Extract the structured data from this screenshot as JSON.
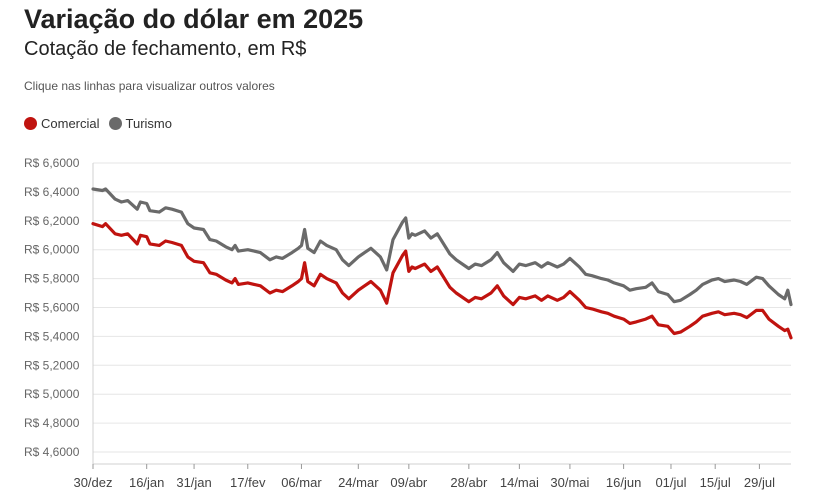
{
  "header": {
    "title": "Variação do dólar em 2025",
    "subtitle": "Cotação de fechamento, em R$",
    "hint": "Clique nas linhas para visualizar outros valores"
  },
  "legend": [
    {
      "label": "Comercial",
      "color": "#c0130f"
    },
    {
      "label": "Turismo",
      "color": "#6a6a6a"
    }
  ],
  "chart_data": {
    "type": "line",
    "title": "Variação do dólar em 2025",
    "subtitle": "Cotação de fechamento, em R$",
    "ylim": [
      4.6,
      6.6
    ],
    "yticks": [
      {
        "value": 6.6,
        "label": "R$ 6,6000"
      },
      {
        "value": 6.4,
        "label": "R$ 6,4000"
      },
      {
        "value": 6.2,
        "label": "R$ 6,2000"
      },
      {
        "value": 6.0,
        "label": "R$ 6,0000"
      },
      {
        "value": 5.8,
        "label": "R$ 5,8000"
      },
      {
        "value": 5.6,
        "label": "R$ 5,6000"
      },
      {
        "value": 5.4,
        "label": "R$ 5,4000"
      },
      {
        "value": 5.2,
        "label": "R$ 5,2000"
      },
      {
        "value": 5.0,
        "label": "R$ 5,0000"
      },
      {
        "value": 4.8,
        "label": "R$ 4,8000"
      },
      {
        "value": 4.6,
        "label": "R$ 4,6000"
      }
    ],
    "xlim": [
      "2024-12-30",
      "2025-08-08"
    ],
    "xticks": [
      {
        "date": "2024-12-30",
        "label": "30/dez"
      },
      {
        "date": "2025-01-16",
        "label": "16/jan"
      },
      {
        "date": "2025-01-31",
        "label": "31/jan"
      },
      {
        "date": "2025-02-17",
        "label": "17/fev"
      },
      {
        "date": "2025-03-06",
        "label": "06/mar"
      },
      {
        "date": "2025-03-24",
        "label": "24/mar"
      },
      {
        "date": "2025-04-09",
        "label": "09/abr"
      },
      {
        "date": "2025-04-28",
        "label": "28/abr"
      },
      {
        "date": "2025-05-14",
        "label": "14/mai"
      },
      {
        "date": "2025-05-30",
        "label": "30/mai"
      },
      {
        "date": "2025-06-16",
        "label": "16/jun"
      },
      {
        "date": "2025-07-01",
        "label": "01/jul"
      },
      {
        "date": "2025-07-15",
        "label": "15/jul"
      },
      {
        "date": "2025-07-29",
        "label": "29/jul"
      }
    ],
    "grid": true,
    "legend_position": "top-left",
    "series": [
      {
        "name": "Comercial",
        "color": "#c0130f",
        "points": [
          [
            "2024-12-30",
            6.18
          ],
          [
            "2025-01-02",
            6.16
          ],
          [
            "2025-01-03",
            6.18
          ],
          [
            "2025-01-06",
            6.11
          ],
          [
            "2025-01-08",
            6.1
          ],
          [
            "2025-01-10",
            6.11
          ],
          [
            "2025-01-13",
            6.04
          ],
          [
            "2025-01-14",
            6.1
          ],
          [
            "2025-01-16",
            6.09
          ],
          [
            "2025-01-17",
            6.04
          ],
          [
            "2025-01-20",
            6.03
          ],
          [
            "2025-01-22",
            6.06
          ],
          [
            "2025-01-24",
            6.05
          ],
          [
            "2025-01-27",
            6.03
          ],
          [
            "2025-01-29",
            5.95
          ],
          [
            "2025-01-31",
            5.92
          ],
          [
            "2025-02-03",
            5.91
          ],
          [
            "2025-02-05",
            5.84
          ],
          [
            "2025-02-07",
            5.83
          ],
          [
            "2025-02-10",
            5.79
          ],
          [
            "2025-02-12",
            5.77
          ],
          [
            "2025-02-13",
            5.8
          ],
          [
            "2025-02-14",
            5.76
          ],
          [
            "2025-02-17",
            5.77
          ],
          [
            "2025-02-19",
            5.76
          ],
          [
            "2025-02-21",
            5.75
          ],
          [
            "2025-02-24",
            5.7
          ],
          [
            "2025-02-26",
            5.72
          ],
          [
            "2025-02-28",
            5.71
          ],
          [
            "2025-03-03",
            5.75
          ],
          [
            "2025-03-05",
            5.78
          ],
          [
            "2025-03-06",
            5.8
          ],
          [
            "2025-03-07",
            5.91
          ],
          [
            "2025-03-08",
            5.78
          ],
          [
            "2025-03-10",
            5.75
          ],
          [
            "2025-03-12",
            5.83
          ],
          [
            "2025-03-14",
            5.8
          ],
          [
            "2025-03-17",
            5.77
          ],
          [
            "2025-03-19",
            5.7
          ],
          [
            "2025-03-21",
            5.66
          ],
          [
            "2025-03-24",
            5.72
          ],
          [
            "2025-03-26",
            5.75
          ],
          [
            "2025-03-28",
            5.78
          ],
          [
            "2025-03-31",
            5.72
          ],
          [
            "2025-04-02",
            5.63
          ],
          [
            "2025-04-04",
            5.84
          ],
          [
            "2025-04-07",
            5.96
          ],
          [
            "2025-04-08",
            5.99
          ],
          [
            "2025-04-09",
            5.85
          ],
          [
            "2025-04-10",
            5.88
          ],
          [
            "2025-04-11",
            5.87
          ],
          [
            "2025-04-14",
            5.9
          ],
          [
            "2025-04-16",
            5.85
          ],
          [
            "2025-04-18",
            5.88
          ],
          [
            "2025-04-22",
            5.74
          ],
          [
            "2025-04-24",
            5.7
          ],
          [
            "2025-04-28",
            5.64
          ],
          [
            "2025-04-30",
            5.67
          ],
          [
            "2025-05-02",
            5.66
          ],
          [
            "2025-05-05",
            5.7
          ],
          [
            "2025-05-07",
            5.75
          ],
          [
            "2025-05-09",
            5.68
          ],
          [
            "2025-05-12",
            5.62
          ],
          [
            "2025-05-14",
            5.67
          ],
          [
            "2025-05-16",
            5.66
          ],
          [
            "2025-05-19",
            5.68
          ],
          [
            "2025-05-21",
            5.65
          ],
          [
            "2025-05-23",
            5.68
          ],
          [
            "2025-05-26",
            5.65
          ],
          [
            "2025-05-28",
            5.67
          ],
          [
            "2025-05-30",
            5.71
          ],
          [
            "2025-06-02",
            5.65
          ],
          [
            "2025-06-04",
            5.6
          ],
          [
            "2025-06-06",
            5.59
          ],
          [
            "2025-06-09",
            5.57
          ],
          [
            "2025-06-11",
            5.56
          ],
          [
            "2025-06-13",
            5.54
          ],
          [
            "2025-06-16",
            5.52
          ],
          [
            "2025-06-18",
            5.49
          ],
          [
            "2025-06-20",
            5.5
          ],
          [
            "2025-06-23",
            5.52
          ],
          [
            "2025-06-25",
            5.54
          ],
          [
            "2025-06-27",
            5.48
          ],
          [
            "2025-06-30",
            5.47
          ],
          [
            "2025-07-02",
            5.42
          ],
          [
            "2025-07-04",
            5.43
          ],
          [
            "2025-07-07",
            5.47
          ],
          [
            "2025-07-09",
            5.5
          ],
          [
            "2025-07-11",
            5.54
          ],
          [
            "2025-07-14",
            5.56
          ],
          [
            "2025-07-16",
            5.57
          ],
          [
            "2025-07-18",
            5.55
          ],
          [
            "2025-07-21",
            5.56
          ],
          [
            "2025-07-23",
            5.55
          ],
          [
            "2025-07-25",
            5.53
          ],
          [
            "2025-07-28",
            5.58
          ],
          [
            "2025-07-30",
            5.58
          ],
          [
            "2025-08-01",
            5.52
          ],
          [
            "2025-08-04",
            5.47
          ],
          [
            "2025-08-06",
            5.44
          ],
          [
            "2025-08-07",
            5.45
          ],
          [
            "2025-08-08",
            5.39
          ]
        ]
      },
      {
        "name": "Turismo",
        "color": "#6a6a6a",
        "points": [
          [
            "2024-12-30",
            6.42
          ],
          [
            "2025-01-02",
            6.41
          ],
          [
            "2025-01-03",
            6.42
          ],
          [
            "2025-01-06",
            6.35
          ],
          [
            "2025-01-08",
            6.33
          ],
          [
            "2025-01-10",
            6.34
          ],
          [
            "2025-01-13",
            6.28
          ],
          [
            "2025-01-14",
            6.33
          ],
          [
            "2025-01-16",
            6.32
          ],
          [
            "2025-01-17",
            6.27
          ],
          [
            "2025-01-20",
            6.26
          ],
          [
            "2025-01-22",
            6.29
          ],
          [
            "2025-01-24",
            6.28
          ],
          [
            "2025-01-27",
            6.26
          ],
          [
            "2025-01-29",
            6.18
          ],
          [
            "2025-01-31",
            6.15
          ],
          [
            "2025-02-03",
            6.14
          ],
          [
            "2025-02-05",
            6.07
          ],
          [
            "2025-02-07",
            6.06
          ],
          [
            "2025-02-10",
            6.02
          ],
          [
            "2025-02-12",
            6.0
          ],
          [
            "2025-02-13",
            6.03
          ],
          [
            "2025-02-14",
            5.99
          ],
          [
            "2025-02-17",
            6.0
          ],
          [
            "2025-02-19",
            5.99
          ],
          [
            "2025-02-21",
            5.98
          ],
          [
            "2025-02-24",
            5.93
          ],
          [
            "2025-02-26",
            5.95
          ],
          [
            "2025-02-28",
            5.94
          ],
          [
            "2025-03-03",
            5.98
          ],
          [
            "2025-03-05",
            6.01
          ],
          [
            "2025-03-06",
            6.03
          ],
          [
            "2025-03-07",
            6.14
          ],
          [
            "2025-03-08",
            6.01
          ],
          [
            "2025-03-10",
            5.98
          ],
          [
            "2025-03-12",
            6.06
          ],
          [
            "2025-03-14",
            6.03
          ],
          [
            "2025-03-17",
            6.0
          ],
          [
            "2025-03-19",
            5.93
          ],
          [
            "2025-03-21",
            5.89
          ],
          [
            "2025-03-24",
            5.95
          ],
          [
            "2025-03-26",
            5.98
          ],
          [
            "2025-03-28",
            6.01
          ],
          [
            "2025-03-31",
            5.95
          ],
          [
            "2025-04-02",
            5.86
          ],
          [
            "2025-04-04",
            6.07
          ],
          [
            "2025-04-07",
            6.19
          ],
          [
            "2025-04-08",
            6.22
          ],
          [
            "2025-04-09",
            6.08
          ],
          [
            "2025-04-10",
            6.11
          ],
          [
            "2025-04-11",
            6.1
          ],
          [
            "2025-04-14",
            6.13
          ],
          [
            "2025-04-16",
            6.08
          ],
          [
            "2025-04-18",
            6.11
          ],
          [
            "2025-04-22",
            5.97
          ],
          [
            "2025-04-24",
            5.93
          ],
          [
            "2025-04-28",
            5.87
          ],
          [
            "2025-04-30",
            5.9
          ],
          [
            "2025-05-02",
            5.89
          ],
          [
            "2025-05-05",
            5.93
          ],
          [
            "2025-05-07",
            5.98
          ],
          [
            "2025-05-09",
            5.91
          ],
          [
            "2025-05-12",
            5.85
          ],
          [
            "2025-05-14",
            5.9
          ],
          [
            "2025-05-16",
            5.89
          ],
          [
            "2025-05-19",
            5.91
          ],
          [
            "2025-05-21",
            5.88
          ],
          [
            "2025-05-23",
            5.91
          ],
          [
            "2025-05-26",
            5.88
          ],
          [
            "2025-05-28",
            5.9
          ],
          [
            "2025-05-30",
            5.94
          ],
          [
            "2025-06-02",
            5.88
          ],
          [
            "2025-06-04",
            5.83
          ],
          [
            "2025-06-06",
            5.82
          ],
          [
            "2025-06-09",
            5.8
          ],
          [
            "2025-06-11",
            5.79
          ],
          [
            "2025-06-13",
            5.77
          ],
          [
            "2025-06-16",
            5.75
          ],
          [
            "2025-06-18",
            5.72
          ],
          [
            "2025-06-20",
            5.73
          ],
          [
            "2025-06-23",
            5.74
          ],
          [
            "2025-06-25",
            5.77
          ],
          [
            "2025-06-27",
            5.71
          ],
          [
            "2025-06-30",
            5.69
          ],
          [
            "2025-07-02",
            5.64
          ],
          [
            "2025-07-04",
            5.65
          ],
          [
            "2025-07-07",
            5.69
          ],
          [
            "2025-07-09",
            5.72
          ],
          [
            "2025-07-11",
            5.76
          ],
          [
            "2025-07-14",
            5.79
          ],
          [
            "2025-07-16",
            5.8
          ],
          [
            "2025-07-18",
            5.78
          ],
          [
            "2025-07-21",
            5.79
          ],
          [
            "2025-07-23",
            5.78
          ],
          [
            "2025-07-25",
            5.76
          ],
          [
            "2025-07-28",
            5.81
          ],
          [
            "2025-07-30",
            5.8
          ],
          [
            "2025-08-01",
            5.75
          ],
          [
            "2025-08-04",
            5.69
          ],
          [
            "2025-08-06",
            5.66
          ],
          [
            "2025-08-07",
            5.72
          ],
          [
            "2025-08-08",
            5.62
          ]
        ]
      }
    ]
  }
}
